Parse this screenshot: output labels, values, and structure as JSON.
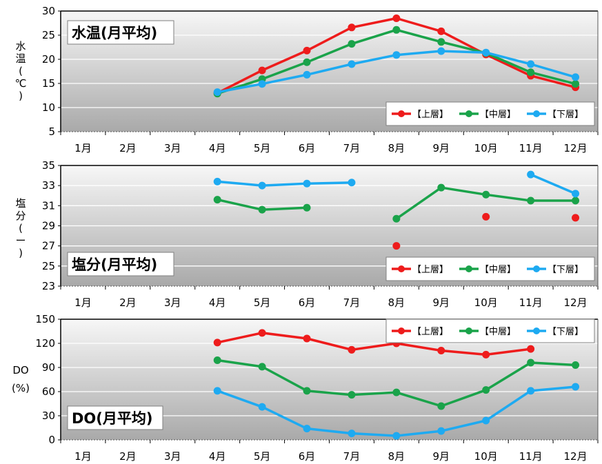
{
  "months": [
    "1月",
    "2月",
    "3月",
    "4月",
    "5月",
    "6月",
    "7月",
    "8月",
    "9月",
    "10月",
    "11月",
    "12月"
  ],
  "legend": [
    "【上層】",
    "【中層】",
    "【下層】"
  ],
  "colors": {
    "upper": "#ee1c1c",
    "middle": "#1aa34a",
    "lower": "#1eaaf1"
  },
  "chart_data": [
    {
      "type": "line",
      "title": "水温(月平均)",
      "ylabel_chars": [
        "水",
        "温",
        "(",
        "℃",
        ")"
      ],
      "ylim": [
        5,
        30
      ],
      "yticks": [
        5,
        10,
        15,
        20,
        25,
        30
      ],
      "legend_position": "bottom-right",
      "categories": [
        "1月",
        "2月",
        "3月",
        "4月",
        "5月",
        "6月",
        "7月",
        "8月",
        "9月",
        "10月",
        "11月",
        "12月"
      ],
      "series": [
        {
          "name": "【上層】",
          "color": "#ee1c1c",
          "values": [
            null,
            null,
            null,
            13.0,
            17.7,
            21.8,
            26.6,
            28.5,
            25.8,
            21.0,
            16.6,
            14.2
          ]
        },
        {
          "name": "【中層】",
          "color": "#1aa34a",
          "values": [
            null,
            null,
            null,
            12.9,
            15.9,
            19.4,
            23.2,
            26.1,
            23.6,
            21.3,
            17.3,
            14.9
          ]
        },
        {
          "name": "【下層】",
          "color": "#1eaaf1",
          "values": [
            null,
            null,
            null,
            13.2,
            14.9,
            16.8,
            19.0,
            20.9,
            21.7,
            21.4,
            19.0,
            16.3
          ]
        }
      ]
    },
    {
      "type": "line",
      "title": "塩分(月平均)",
      "ylabel_chars": [
        "塩",
        "分",
        "(",
        "ー",
        ")"
      ],
      "ylim": [
        23,
        35
      ],
      "yticks": [
        23,
        25,
        27,
        29,
        31,
        33,
        35
      ],
      "legend_position": "bottom-right",
      "categories": [
        "1月",
        "2月",
        "3月",
        "4月",
        "5月",
        "6月",
        "7月",
        "8月",
        "9月",
        "10月",
        "11月",
        "12月"
      ],
      "series": [
        {
          "name": "【上層】",
          "color": "#ee1c1c",
          "values": [
            null,
            null,
            null,
            null,
            null,
            null,
            null,
            27.0,
            null,
            29.9,
            null,
            29.8
          ]
        },
        {
          "name": "【中層】",
          "color": "#1aa34a",
          "values": [
            null,
            null,
            null,
            31.6,
            30.6,
            30.8,
            null,
            29.7,
            32.8,
            32.1,
            31.5,
            31.5
          ]
        },
        {
          "name": "【下層】",
          "color": "#1eaaf1",
          "values": [
            null,
            null,
            null,
            33.4,
            33.0,
            33.2,
            33.3,
            null,
            null,
            null,
            34.1,
            32.2
          ]
        }
      ]
    },
    {
      "type": "line",
      "title": "DO(月平均)",
      "ylabel_chars": [
        "DO",
        "(%)"
      ],
      "ylim": [
        0,
        150
      ],
      "yticks": [
        0,
        30,
        60,
        90,
        120,
        150
      ],
      "legend_position": "top-right",
      "categories": [
        "1月",
        "2月",
        "3月",
        "4月",
        "5月",
        "6月",
        "7月",
        "8月",
        "9月",
        "10月",
        "11月",
        "12月"
      ],
      "series": [
        {
          "name": "【上層】",
          "color": "#ee1c1c",
          "values": [
            null,
            null,
            null,
            121,
            133,
            126,
            112,
            120,
            111,
            106,
            113,
            null
          ]
        },
        {
          "name": "【中層】",
          "color": "#1aa34a",
          "values": [
            null,
            null,
            null,
            99,
            91,
            61,
            56,
            59,
            42,
            62,
            96,
            93
          ]
        },
        {
          "name": "【下層】",
          "color": "#1eaaf1",
          "values": [
            null,
            null,
            null,
            61,
            41,
            14,
            8,
            5,
            11,
            24,
            61,
            66
          ]
        }
      ]
    }
  ]
}
